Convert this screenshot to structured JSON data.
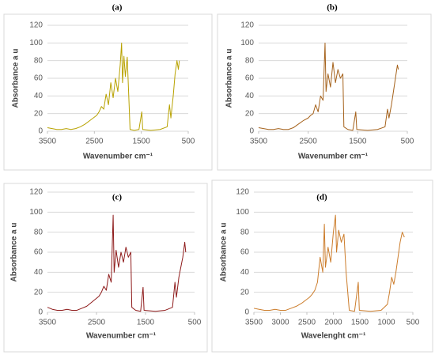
{
  "chart_data": [
    {
      "type": "line",
      "title": "(a)",
      "y_label": "Absorbance a u",
      "x_label": "Wavenumber cm⁻¹",
      "color": "#b8a200",
      "xlim": [
        3500,
        500
      ],
      "xticks": [
        3500,
        2500,
        1500,
        500
      ],
      "ylim": [
        0,
        120
      ],
      "yticks": [
        0,
        20,
        40,
        60,
        80,
        100,
        120
      ],
      "grid": true,
      "x": [
        3500,
        3400,
        3300,
        3200,
        3100,
        3000,
        2900,
        2800,
        2700,
        2600,
        2500,
        2450,
        2400,
        2350,
        2300,
        2250,
        2200,
        2150,
        2100,
        2050,
        2000,
        1950,
        1920,
        1900,
        1870,
        1840,
        1800,
        1760,
        1740,
        1650,
        1550,
        1490,
        1470,
        1300,
        1100,
        950,
        900,
        870,
        820,
        780,
        740,
        710,
        690
      ],
      "values": [
        4,
        3,
        2,
        2,
        3,
        2,
        3,
        5,
        8,
        12,
        16,
        18,
        22,
        28,
        25,
        42,
        30,
        55,
        38,
        60,
        45,
        75,
        100,
        55,
        85,
        62,
        84,
        30,
        2,
        1,
        2,
        22,
        2,
        1,
        2,
        5,
        30,
        15,
        40,
        65,
        80,
        70,
        80
      ]
    },
    {
      "type": "line",
      "title": "(b)",
      "y_label": "Absorbance a u",
      "x_label": "Wavenumber cm⁻¹",
      "color": "#a5621c",
      "xlim": [
        3500,
        500
      ],
      "xticks": [
        3500,
        2500,
        1500,
        500
      ],
      "ylim": [
        0,
        120
      ],
      "yticks": [
        0,
        20,
        40,
        60,
        80,
        100,
        120
      ],
      "grid": true,
      "x": [
        3500,
        3400,
        3300,
        3200,
        3100,
        3000,
        2900,
        2800,
        2700,
        2600,
        2500,
        2450,
        2400,
        2350,
        2300,
        2250,
        2200,
        2160,
        2140,
        2100,
        2050,
        2000,
        1950,
        1900,
        1850,
        1800,
        1780,
        1700,
        1600,
        1540,
        1520,
        1300,
        1100,
        950,
        900,
        870,
        820,
        780,
        740,
        700,
        680
      ],
      "values": [
        4,
        3,
        2,
        2,
        3,
        2,
        2,
        4,
        8,
        12,
        15,
        18,
        20,
        30,
        22,
        40,
        35,
        100,
        45,
        65,
        50,
        78,
        55,
        70,
        60,
        65,
        5,
        2,
        1,
        22,
        2,
        1,
        2,
        5,
        25,
        15,
        30,
        45,
        60,
        75,
        70
      ]
    },
    {
      "type": "line",
      "title": "(c)",
      "y_label": "Absorbance a u",
      "x_label": "Wavenumber cm⁻¹",
      "color": "#8e1b1b",
      "xlim": [
        3500,
        500
      ],
      "xticks": [
        3500,
        2500,
        1500,
        500
      ],
      "ylim": [
        0,
        120
      ],
      "yticks": [
        0,
        20,
        40,
        60,
        80,
        100,
        120
      ],
      "grid": true,
      "x": [
        3500,
        3400,
        3300,
        3200,
        3100,
        3000,
        2900,
        2800,
        2700,
        2600,
        2500,
        2450,
        2400,
        2350,
        2300,
        2250,
        2200,
        2160,
        2140,
        2100,
        2050,
        2000,
        1950,
        1900,
        1850,
        1800,
        1780,
        1700,
        1600,
        1550,
        1530,
        1300,
        1100,
        950,
        900,
        870,
        820,
        780,
        740,
        700,
        680
      ],
      "values": [
        5,
        3,
        2,
        2,
        3,
        2,
        2,
        4,
        6,
        10,
        14,
        16,
        20,
        26,
        22,
        38,
        30,
        97,
        40,
        62,
        45,
        60,
        50,
        65,
        55,
        60,
        5,
        2,
        1,
        25,
        2,
        1,
        2,
        5,
        30,
        15,
        35,
        45,
        55,
        70,
        60
      ]
    },
    {
      "type": "line",
      "title": "(d)",
      "y_label": "Absorbance a u",
      "x_label": "Wavelenght cm⁻¹",
      "color": "#cc7d2c",
      "xlim": [
        3500,
        500
      ],
      "xticks": [
        3500,
        3000,
        2500,
        2000,
        1500,
        1000,
        500
      ],
      "ylim": [
        0,
        120
      ],
      "yticks": [
        0,
        20,
        40,
        60,
        80,
        100,
        120
      ],
      "grid": true,
      "x": [
        3500,
        3400,
        3300,
        3200,
        3100,
        3000,
        2900,
        2800,
        2700,
        2600,
        2500,
        2450,
        2400,
        2350,
        2300,
        2250,
        2200,
        2170,
        2150,
        2100,
        2050,
        2000,
        1960,
        1940,
        1900,
        1850,
        1800,
        1760,
        1700,
        1600,
        1530,
        1510,
        1300,
        1100,
        980,
        940,
        900,
        860,
        820,
        780,
        740,
        700,
        660
      ],
      "values": [
        4,
        3,
        2,
        2,
        3,
        2,
        2,
        4,
        6,
        9,
        13,
        15,
        18,
        22,
        30,
        55,
        40,
        88,
        45,
        65,
        50,
        80,
        97,
        60,
        82,
        70,
        78,
        40,
        2,
        1,
        30,
        2,
        1,
        2,
        8,
        20,
        35,
        28,
        40,
        55,
        70,
        80,
        75
      ]
    }
  ]
}
